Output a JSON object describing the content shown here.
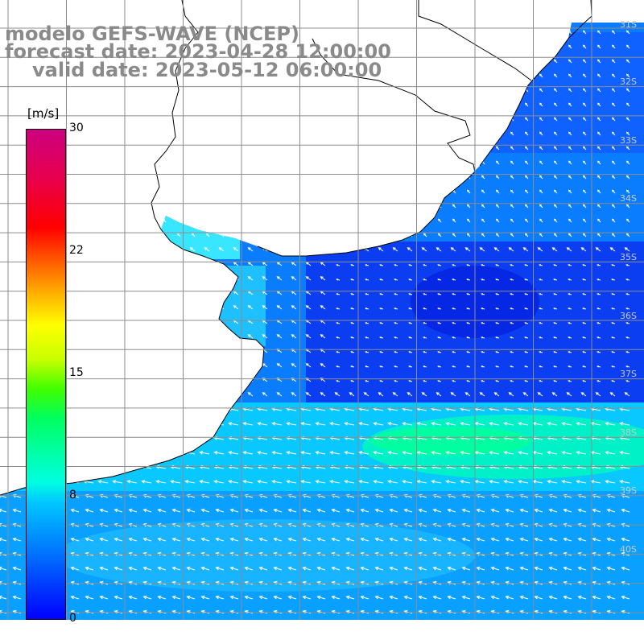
{
  "header": {
    "line1": "modelo GEFS-WAVE (NCEP)",
    "line2": "forecast date: 2023-04-28 12:00:00",
    "line3": "valid date: 2023-05-12 06:00:00"
  },
  "colorbar": {
    "unit": "[m/s]",
    "ticks": [
      "30",
      "22",
      "15",
      "8",
      "0"
    ],
    "range": [
      0,
      30
    ],
    "colors": [
      "#0000ff",
      "#0078ff",
      "#00c8ff",
      "#00ffe0",
      "#00ff60",
      "#ffff00",
      "#ff0000",
      "#cc0080"
    ]
  },
  "latitude_labels": [
    "31S",
    "32S",
    "33S",
    "34S",
    "35S",
    "36S",
    "37S",
    "38S",
    "39S",
    "40S"
  ],
  "map": {
    "ocean_colors": {
      "low": "#0033ee",
      "mid": "#0a7dff",
      "high": "#00e6ff",
      "max": "#00ff8c"
    },
    "land_color": "#ffffff",
    "grid_color": "#909090",
    "arrow_color": "#ffffff"
  }
}
